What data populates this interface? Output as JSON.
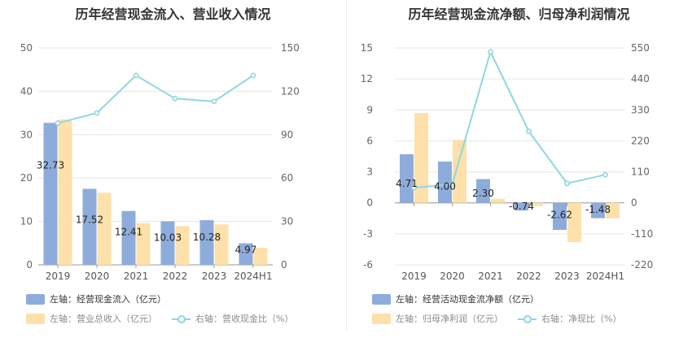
{
  "chart_data": [
    {
      "type": "bar",
      "title": "历年经营现金流入、营业收入情况",
      "categories": [
        "2019",
        "2020",
        "2021",
        "2022",
        "2023",
        "2024H1"
      ],
      "left_axis": {
        "ylim": [
          0,
          50
        ],
        "ticks": [
          0,
          10,
          20,
          30,
          40,
          50
        ]
      },
      "right_axis": {
        "ylim": [
          0,
          150
        ],
        "ticks": [
          0,
          30,
          60,
          90,
          120,
          150
        ]
      },
      "series": [
        {
          "name": "左轴：经营现金流入（亿元）",
          "kind": "bar",
          "axis": "left",
          "values": [
            32.73,
            17.52,
            12.41,
            10.03,
            10.28,
            4.97
          ],
          "labels": [
            "32.73",
            "17.52",
            "12.41",
            "10.03",
            "10.28",
            "4.97"
          ],
          "color": "#8eacdb"
        },
        {
          "name": "左轴：营业总收入（亿元）",
          "kind": "bar",
          "axis": "left",
          "values": [
            33.5,
            16.6,
            9.6,
            8.9,
            9.3,
            3.9
          ],
          "color": "#fde0aa"
        },
        {
          "name": "右轴：营收现金比（%）",
          "kind": "line",
          "axis": "right",
          "values": [
            98,
            105,
            131,
            115,
            113,
            131
          ],
          "color": "#8ed7e0"
        }
      ]
    },
    {
      "type": "bar",
      "title": "历年经营现金流净额、归母净利润情况",
      "categories": [
        "2019",
        "2020",
        "2021",
        "2022",
        "2023",
        "2024H1"
      ],
      "left_axis": {
        "ylim": [
          -6,
          15
        ],
        "ticks": [
          -6,
          -3,
          0,
          3,
          6,
          9,
          12,
          15
        ]
      },
      "right_axis": {
        "ylim": [
          -220,
          550
        ],
        "ticks": [
          -220,
          -110,
          0,
          110,
          220,
          330,
          440,
          550
        ]
      },
      "series": [
        {
          "name": "左轴：经营活动现金流净额（亿元）",
          "kind": "bar",
          "axis": "left",
          "values": [
            4.71,
            4.0,
            2.3,
            -0.74,
            -2.62,
            -1.48
          ],
          "labels": [
            "4.71",
            "4.00",
            "2.30",
            "-0.74",
            "-2.62",
            "-1.48"
          ],
          "color": "#8eacdb"
        },
        {
          "name": "左轴：归母净利润（亿元）",
          "kind": "bar",
          "axis": "left",
          "values": [
            8.7,
            6.1,
            0.4,
            -0.3,
            -3.8,
            -1.5
          ],
          "color": "#fde0aa"
        },
        {
          "name": "右轴：净现比（%）",
          "kind": "line",
          "axis": "right",
          "values": [
            54,
            66,
            536,
            254,
            69,
            100
          ],
          "color": "#8ed7e0"
        }
      ]
    }
  ]
}
